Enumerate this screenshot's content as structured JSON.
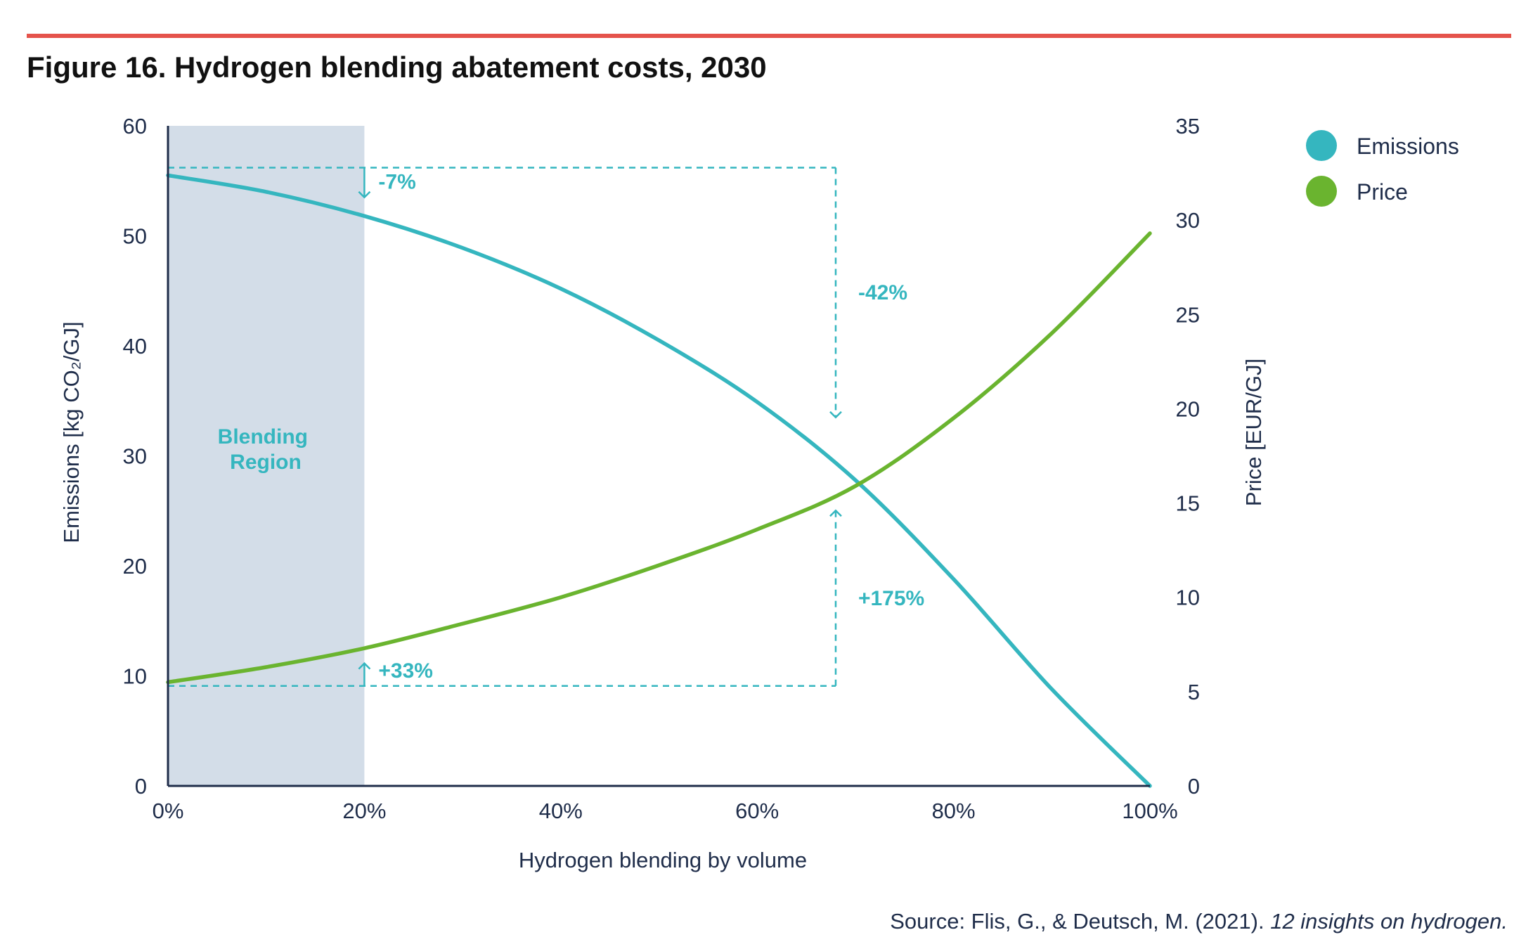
{
  "figure": {
    "title": "Figure 16. Hydrogen blending abatement costs, 2030",
    "source_prefix": "Source: Flis, G., & Deutsch, M. (2021). ",
    "source_work": "12 insights on hydrogen."
  },
  "colors": {
    "emissions": "#35b6bf",
    "price": "#6ab42f",
    "region": "#d3dde8",
    "axis": "#1f2d4a",
    "annotation": "#35b6bf",
    "rule": "#e5534b"
  },
  "chart_data": {
    "type": "line",
    "xlabel": "Hydrogen blending by volume",
    "ylabel_left": "Emissions [kg CO₂/GJ]",
    "ylabel_right": "Price [EUR/GJ]",
    "xlim": [
      0,
      100
    ],
    "ylim_left": [
      0,
      60
    ],
    "ylim_right": [
      0,
      35
    ],
    "x_ticks": [
      "0%",
      "20%",
      "40%",
      "60%",
      "80%",
      "100%"
    ],
    "y_ticks_left": [
      "0",
      "10",
      "20",
      "30",
      "40",
      "50",
      "60"
    ],
    "y_ticks_right": [
      "0",
      "5",
      "10",
      "15",
      "20",
      "25",
      "30",
      "35"
    ],
    "x": [
      0,
      10,
      20,
      30,
      40,
      50,
      60,
      70,
      80,
      90,
      100
    ],
    "series": [
      {
        "name": "Emissions",
        "axis": "left",
        "values": [
          55.5,
          54.0,
          51.8,
          48.9,
          45.2,
          40.5,
          34.9,
          27.8,
          18.8,
          8.8,
          0
        ]
      },
      {
        "name": "Price",
        "axis": "right",
        "values": [
          5.5,
          6.3,
          7.3,
          8.6,
          10.0,
          11.7,
          13.6,
          15.9,
          19.5,
          24.0,
          29.3
        ]
      }
    ],
    "shaded_region": {
      "label": "Blending Region",
      "x_range": [
        0,
        20
      ]
    },
    "annotations": [
      {
        "text": "-7%",
        "series": "Emissions",
        "x": 20,
        "from": 56.2,
        "to": 53.5
      },
      {
        "text": "-42%",
        "series": "Emissions",
        "x": 68,
        "from": 56.2,
        "to": 33.5
      },
      {
        "text": "+33%",
        "series": "Price",
        "x": 20,
        "from": 5.3,
        "to": 6.5
      },
      {
        "text": "+175%",
        "series": "Price",
        "x": 68,
        "from": 5.3,
        "to": 14.6
      }
    ],
    "legend": {
      "position": "top-right",
      "entries": [
        "Emissions",
        "Price"
      ]
    },
    "grid": false
  }
}
